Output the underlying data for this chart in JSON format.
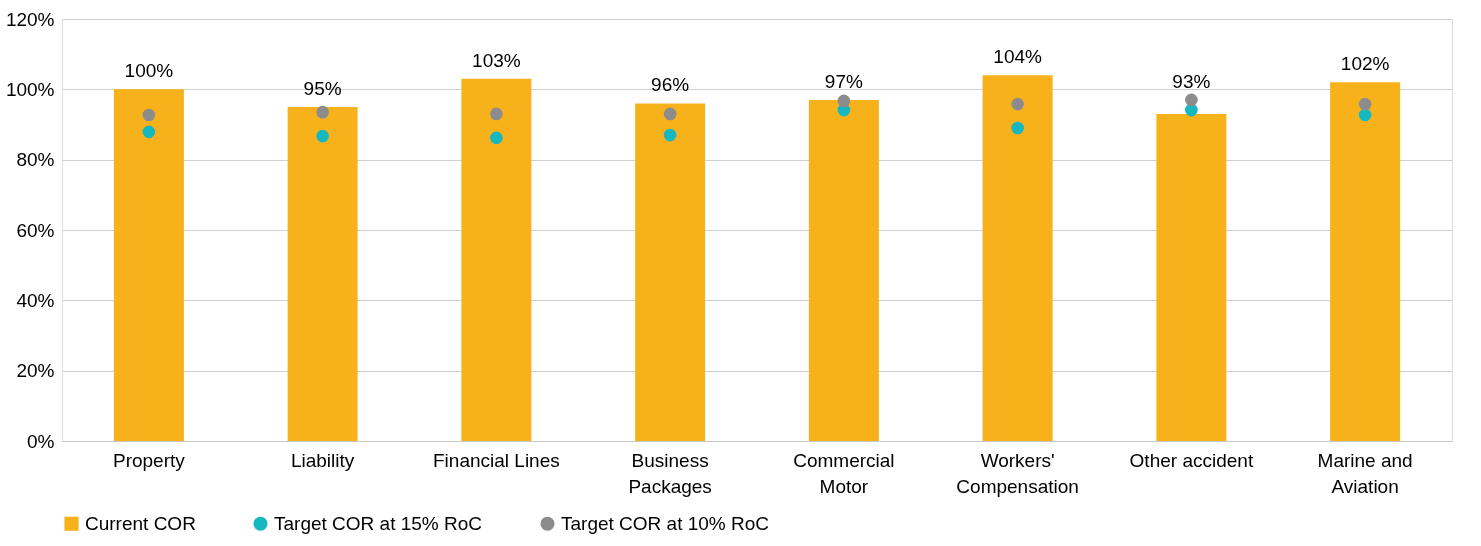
{
  "chart_data": {
    "type": "bar",
    "categories": [
      "Property",
      "Liability",
      "Financial Lines",
      "Business Packages",
      "Commercial Motor",
      "Workers' Compensation",
      "Other accident",
      "Marine and Aviation"
    ],
    "series": [
      {
        "name": "Current COR",
        "color": "#f7b21b",
        "values": [
          100,
          95,
          103,
          96,
          97,
          104,
          93,
          102
        ],
        "value_labels": [
          "100%",
          "95%",
          "103%",
          "96%",
          "97%",
          "104%",
          "93%",
          "102%"
        ]
      },
      {
        "name": "Target COR at 15% RoC",
        "type": "scatter",
        "color": "#16b8bf",
        "values": [
          87.9,
          86.7,
          86.2,
          87,
          94.1,
          89,
          94.1,
          92.7
        ]
      },
      {
        "name": "Target COR at 10% RoC",
        "type": "scatter",
        "color": "#8c8c8c",
        "values": [
          92.7,
          93.5,
          93,
          93,
          96.7,
          95.8,
          97,
          95.8
        ]
      }
    ],
    "ylim": [
      0,
      120
    ],
    "yticks": [
      {
        "value": 0,
        "label": "0%"
      },
      {
        "value": 20,
        "label": "20%"
      },
      {
        "value": 40,
        "label": "40%"
      },
      {
        "value": 60,
        "label": "60%"
      },
      {
        "value": 80,
        "label": "80%"
      },
      {
        "value": 100,
        "label": "100%"
      },
      {
        "value": 120,
        "label": "120%"
      }
    ],
    "grid": "y",
    "legend": "bottom",
    "marker": "circle"
  }
}
